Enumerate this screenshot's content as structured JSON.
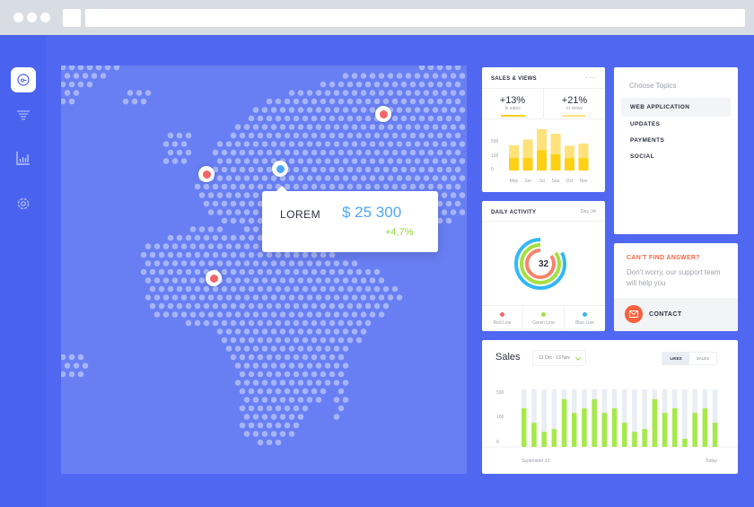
{
  "map": {
    "tooltip": {
      "label": "LOREM",
      "value": "$ 25 300",
      "change": "+4,7%"
    },
    "colors": {
      "red_pin": "#f5636a",
      "blue_pin": "#4ea8f5"
    }
  },
  "sidebar": {
    "items": [
      {
        "icon": "dashboard-dial-icon",
        "active": true
      },
      {
        "icon": "filter-icon"
      },
      {
        "icon": "bar-chart-icon"
      },
      {
        "icon": "gear-icon"
      }
    ]
  },
  "sales_views": {
    "title": "SALES & VIEWS",
    "stats": [
      {
        "value": "+13%",
        "label": "In sales"
      },
      {
        "value": "+21%",
        "label": "In views"
      }
    ],
    "chart_data": {
      "type": "bar",
      "categories": [
        "May",
        "Jun",
        "Jul",
        "Sep",
        "Oct",
        "Nov"
      ],
      "y_ticks": [
        "500",
        "100",
        "0"
      ],
      "series": [
        {
          "values": [
            0.3,
            0.3,
            0.49,
            0.39,
            0.3,
            0.3
          ],
          "color": "#ffd013"
        },
        {
          "values": [
            0.61,
            0.75,
            1.0,
            0.89,
            0.6,
            0.65
          ],
          "color": "#ffe27a"
        }
      ]
    }
  },
  "daily_activity": {
    "title": "DAILY ACTIVITY",
    "day": "Day 34",
    "center_value": "32",
    "legend": [
      {
        "label": "Red Line",
        "color": "#f5636a"
      },
      {
        "label": "Green Line",
        "color": "#a5e040"
      },
      {
        "label": "Blue Line",
        "color": "#33b8f5"
      }
    ]
  },
  "topics": {
    "title": "Choose Topics",
    "items": [
      "WEB APPLICATION",
      "UPDATES",
      "PAYMENTS",
      "SOCIAL"
    ]
  },
  "help": {
    "title": "CAN'T FIND ANSWER?",
    "text": "Don't worry, our support team will help you",
    "contact": "CONTACT"
  },
  "sales": {
    "title": "Sales",
    "date_range": "13 Oct - 13 Nov",
    "toggle": [
      "LIKES",
      "SALES"
    ],
    "active_toggle": "LIKES",
    "chart_data": {
      "type": "bar",
      "y_ticks": [
        "500",
        "100",
        "0"
      ],
      "x_labels": [
        "September 13",
        "Today"
      ],
      "values_fraction": [
        0.67,
        0.42,
        0.26,
        0.31,
        0.83,
        0.59,
        0.67,
        0.83,
        0.59,
        0.67,
        0.42,
        0.26,
        0.31,
        0.83,
        0.59,
        0.67,
        0.14,
        0.59,
        0.67,
        0.42
      ],
      "color": "#a5e94a"
    }
  }
}
